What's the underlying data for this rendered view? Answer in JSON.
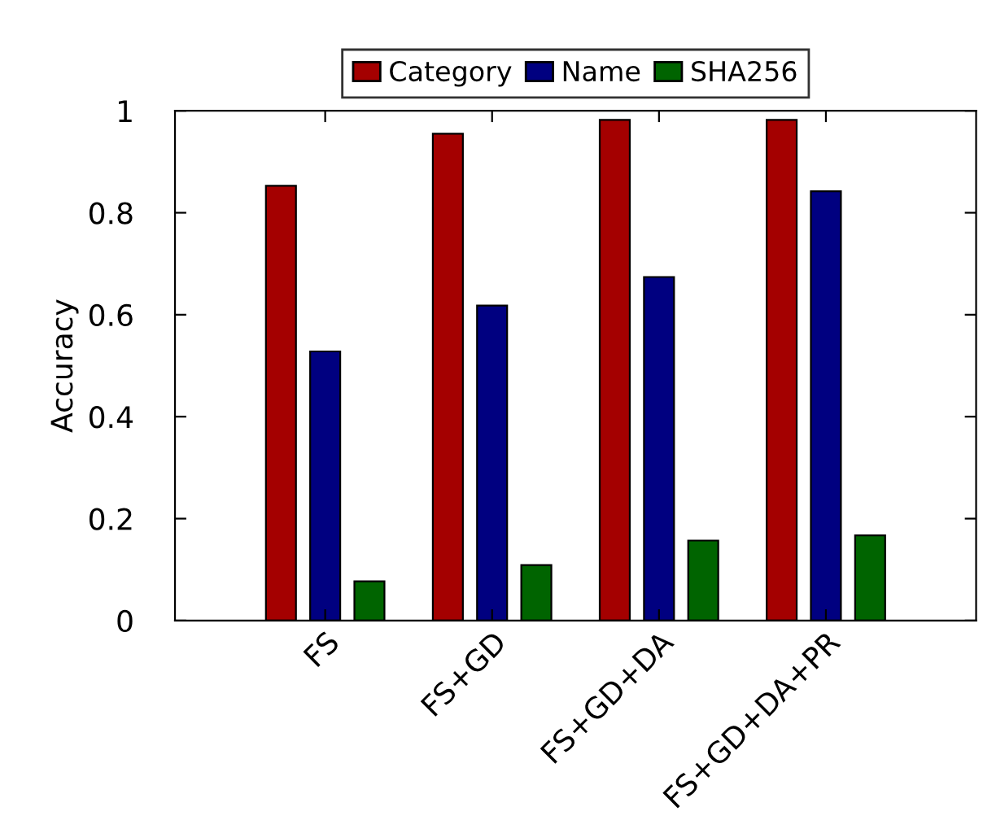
{
  "chart_data": {
    "type": "bar",
    "ylabel": "Accuracy",
    "categories": [
      "FS",
      "FS+GD",
      "FS+GD+DA",
      "FS+GD+DA+PR"
    ],
    "series": [
      {
        "name": "Category",
        "color": "#a40000",
        "values": [
          0.853,
          0.955,
          0.982,
          0.982
        ]
      },
      {
        "name": "Name",
        "color": "#000080",
        "values": [
          0.528,
          0.618,
          0.674,
          0.842
        ]
      },
      {
        "name": "SHA256",
        "color": "#006400",
        "values": [
          0.077,
          0.109,
          0.157,
          0.167
        ]
      }
    ],
    "ylim": [
      0,
      1
    ],
    "yticks": [
      0,
      0.2,
      0.4,
      0.6,
      0.8,
      1
    ],
    "grid": false,
    "legend": "top"
  }
}
